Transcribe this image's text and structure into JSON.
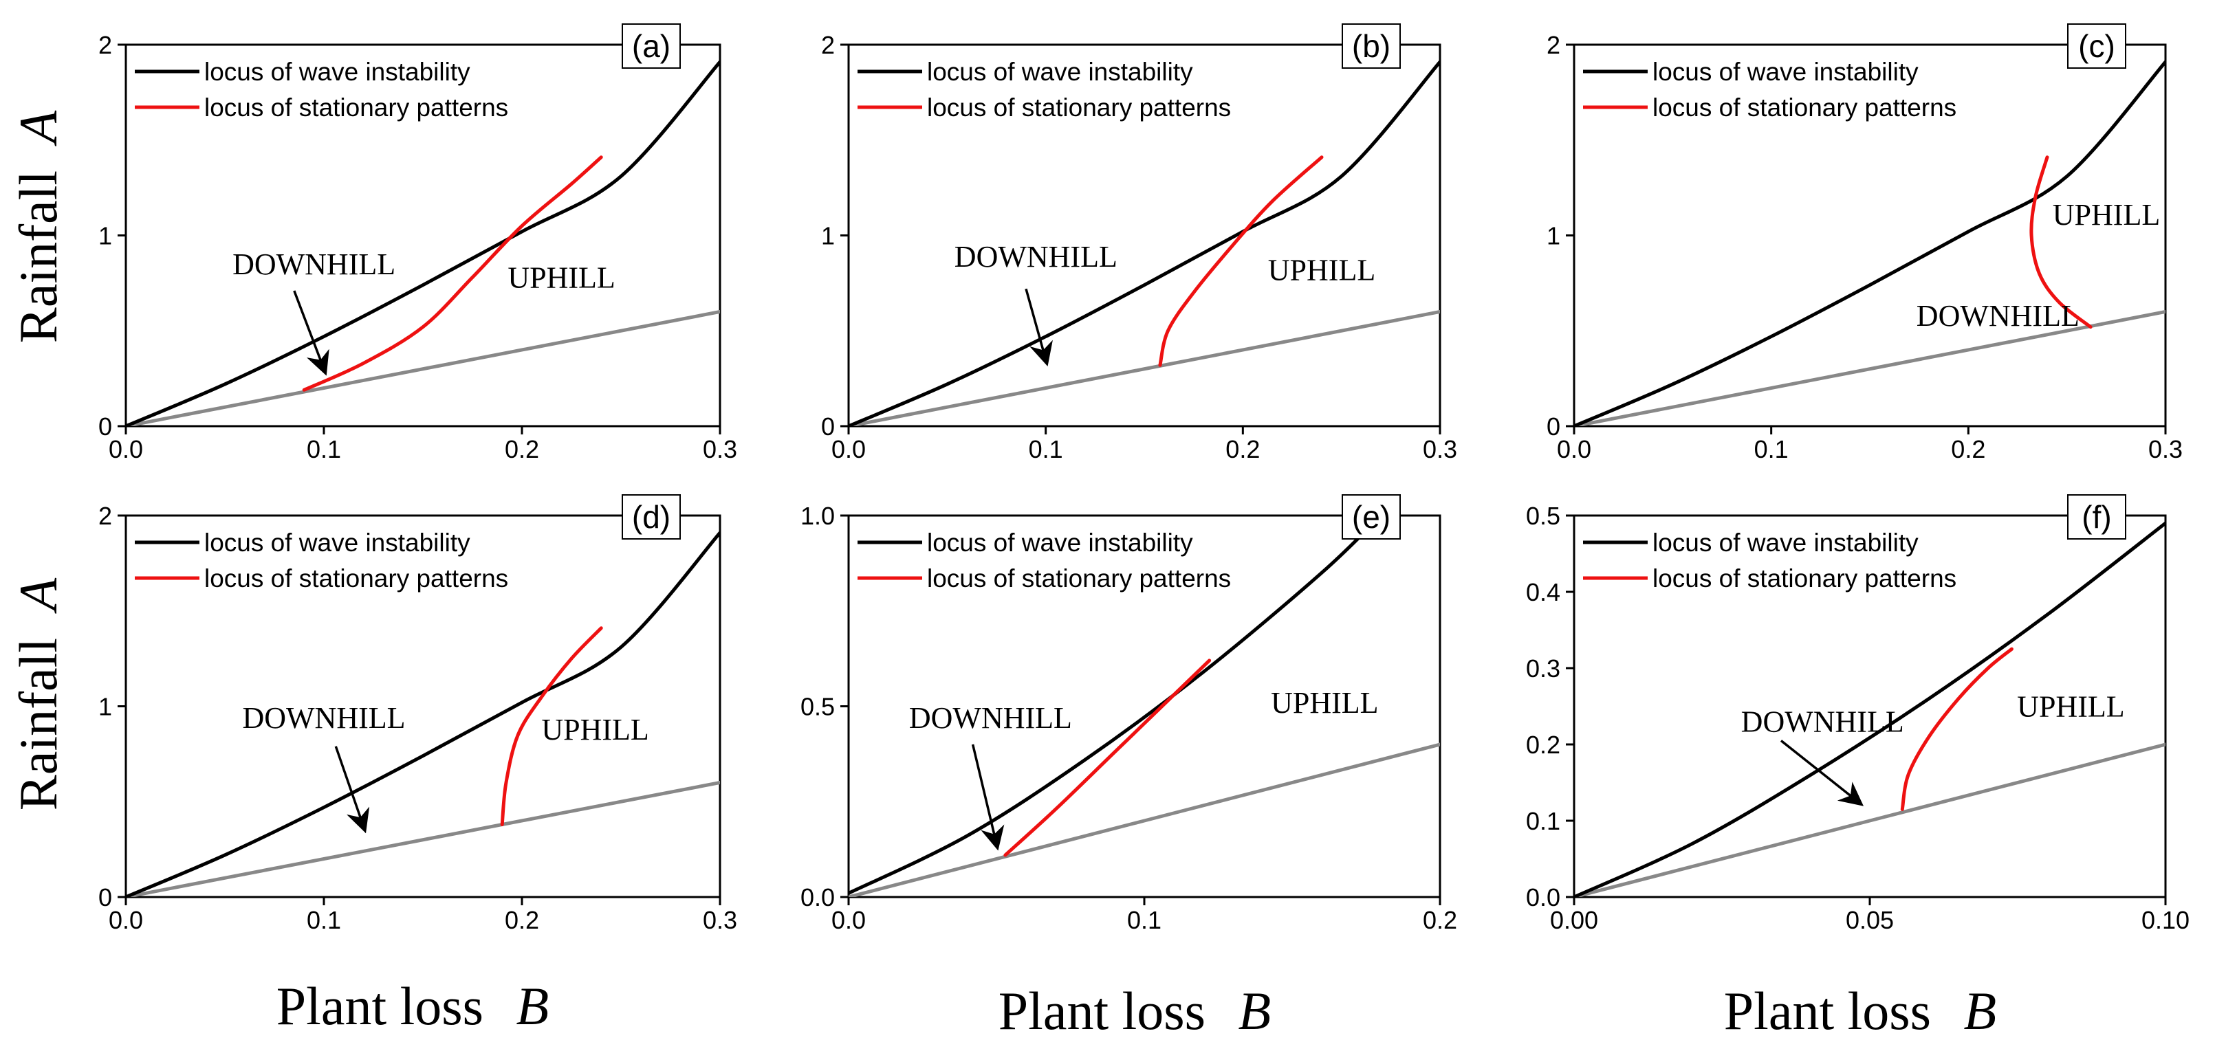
{
  "figure": {
    "ylabel_text": "Rainfall",
    "ylabel_var": "A",
    "xlabel_text": "Plant loss",
    "xlabel_var": "B"
  },
  "colors": {
    "wave_instability": "#000000",
    "stationary_patterns": "#ee1111",
    "boundary": "#888888"
  },
  "chart_data": [
    {
      "type": "line",
      "panel": "(a)",
      "xlim": [
        0,
        0.3
      ],
      "ylim": [
        0,
        2
      ],
      "xticks": [
        0,
        0.1,
        0.2,
        0.3
      ],
      "xtick_labels": [
        "0.0",
        "0.1",
        "0.2",
        "0.3"
      ],
      "yticks": [
        0,
        1,
        2
      ],
      "ytick_labels": [
        "0",
        "1",
        "2"
      ],
      "legend": [
        "locus of wave instability",
        "locus of stationary patterns"
      ],
      "series": [
        {
          "name": "locus of wave instability",
          "role": "wave",
          "x": [
            0,
            0.05,
            0.1,
            0.15,
            0.2,
            0.25,
            0.3
          ],
          "y": [
            0,
            0.22,
            0.47,
            0.74,
            1.02,
            1.31,
            1.91
          ]
        },
        {
          "name": "locus of stationary patterns",
          "role": "stationary",
          "x": [
            0.09,
            0.12,
            0.15,
            0.175,
            0.2,
            0.225,
            0.24
          ],
          "y": [
            0.19,
            0.33,
            0.52,
            0.78,
            1.05,
            1.27,
            1.41
          ]
        },
        {
          "name": "boundary",
          "role": "boundary",
          "x": [
            0,
            0.3
          ],
          "y": [
            0,
            0.6
          ]
        }
      ],
      "labels": [
        {
          "text": "DOWNHILL",
          "x": 0.095,
          "y": 0.85
        },
        {
          "text": "UPHILL",
          "x": 0.22,
          "y": 0.78
        }
      ],
      "arrow": {
        "from": [
          0.085,
          0.71
        ],
        "to": [
          0.1,
          0.3
        ]
      }
    },
    {
      "type": "line",
      "panel": "(b)",
      "xlim": [
        0,
        0.3
      ],
      "ylim": [
        0,
        2
      ],
      "xticks": [
        0,
        0.1,
        0.2,
        0.3
      ],
      "xtick_labels": [
        "0.0",
        "0.1",
        "0.2",
        "0.3"
      ],
      "yticks": [
        0,
        1,
        2
      ],
      "ytick_labels": [
        "0",
        "1",
        "2"
      ],
      "legend": [
        "locus of wave instability",
        "locus of stationary patterns"
      ],
      "series": [
        {
          "name": "locus of wave instability",
          "role": "wave",
          "x": [
            0,
            0.05,
            0.1,
            0.15,
            0.2,
            0.25,
            0.3
          ],
          "y": [
            0,
            0.22,
            0.47,
            0.74,
            1.02,
            1.31,
            1.91
          ]
        },
        {
          "name": "locus of stationary patterns",
          "role": "stationary",
          "x": [
            0.158,
            0.162,
            0.175,
            0.195,
            0.215,
            0.24
          ],
          "y": [
            0.32,
            0.5,
            0.7,
            0.95,
            1.18,
            1.41
          ]
        },
        {
          "name": "boundary",
          "role": "boundary",
          "x": [
            0,
            0.3
          ],
          "y": [
            0,
            0.6
          ]
        }
      ],
      "labels": [
        {
          "text": "DOWNHILL",
          "x": 0.095,
          "y": 0.89
        },
        {
          "text": "UPHILL",
          "x": 0.24,
          "y": 0.82
        }
      ],
      "arrow": {
        "from": [
          0.09,
          0.72
        ],
        "to": [
          0.1,
          0.35
        ]
      }
    },
    {
      "type": "line",
      "panel": "(c)",
      "xlim": [
        0,
        0.3
      ],
      "ylim": [
        0,
        2
      ],
      "xticks": [
        0,
        0.1,
        0.2,
        0.3
      ],
      "xtick_labels": [
        "0.0",
        "0.1",
        "0.2",
        "0.3"
      ],
      "yticks": [
        0,
        1,
        2
      ],
      "ytick_labels": [
        "0",
        "1",
        "2"
      ],
      "legend": [
        "locus of wave instability",
        "locus of stationary patterns"
      ],
      "series": [
        {
          "name": "locus of wave instability",
          "role": "wave",
          "x": [
            0,
            0.05,
            0.1,
            0.15,
            0.2,
            0.25,
            0.3
          ],
          "y": [
            0,
            0.22,
            0.47,
            0.74,
            1.02,
            1.31,
            1.91
          ]
        },
        {
          "name": "locus of stationary patterns",
          "role": "stationary",
          "x": [
            0.24,
            0.234,
            0.232,
            0.236,
            0.246,
            0.262
          ],
          "y": [
            1.41,
            1.2,
            1.0,
            0.8,
            0.65,
            0.52
          ]
        },
        {
          "name": "boundary",
          "role": "boundary",
          "x": [
            0,
            0.3
          ],
          "y": [
            0,
            0.6
          ]
        }
      ],
      "labels": [
        {
          "text": "UPHILL",
          "x": 0.27,
          "y": 1.11
        },
        {
          "text": "DOWNHILL",
          "x": 0.215,
          "y": 0.58
        }
      ]
    },
    {
      "type": "line",
      "panel": "(d)",
      "xlim": [
        0,
        0.3
      ],
      "ylim": [
        0,
        2
      ],
      "xticks": [
        0,
        0.1,
        0.2,
        0.3
      ],
      "xtick_labels": [
        "0.0",
        "0.1",
        "0.2",
        "0.3"
      ],
      "yticks": [
        0,
        1,
        2
      ],
      "ytick_labels": [
        "0",
        "1",
        "2"
      ],
      "legend": [
        "locus of wave instability",
        "locus of stationary patterns"
      ],
      "series": [
        {
          "name": "locus of wave instability",
          "role": "wave",
          "x": [
            0,
            0.05,
            0.1,
            0.15,
            0.2,
            0.25,
            0.3
          ],
          "y": [
            0,
            0.22,
            0.47,
            0.74,
            1.02,
            1.31,
            1.91
          ]
        },
        {
          "name": "locus of stationary patterns",
          "role": "stationary",
          "x": [
            0.19,
            0.192,
            0.198,
            0.21,
            0.225,
            0.24
          ],
          "y": [
            0.38,
            0.6,
            0.85,
            1.05,
            1.25,
            1.41
          ]
        },
        {
          "name": "boundary",
          "role": "boundary",
          "x": [
            0,
            0.3
          ],
          "y": [
            0,
            0.6
          ]
        }
      ],
      "labels": [
        {
          "text": "DOWNHILL",
          "x": 0.1,
          "y": 0.94
        },
        {
          "text": "UPHILL",
          "x": 0.237,
          "y": 0.88
        }
      ],
      "arrow": {
        "from": [
          0.106,
          0.79
        ],
        "to": [
          0.12,
          0.37
        ]
      }
    },
    {
      "type": "line",
      "panel": "(e)",
      "xlim": [
        0,
        0.2
      ],
      "ylim": [
        0,
        1.0
      ],
      "xticks": [
        0,
        0.1,
        0.2
      ],
      "xtick_labels": [
        "0.0",
        "0.1",
        "0.2"
      ],
      "yticks": [
        0,
        0.5,
        1.0
      ],
      "ytick_labels": [
        "0.0",
        "0.5",
        "1.0"
      ],
      "legend": [
        "locus of wave instability",
        "locus of stationary patterns"
      ],
      "series": [
        {
          "name": "locus of wave instability",
          "role": "wave",
          "x": [
            0,
            0.04,
            0.08,
            0.12,
            0.16,
            0.18
          ],
          "y": [
            0.01,
            0.16,
            0.36,
            0.59,
            0.85,
            1.0
          ]
        },
        {
          "name": "locus of stationary patterns",
          "role": "stationary",
          "x": [
            0.053,
            0.07,
            0.09,
            0.11,
            0.122
          ],
          "y": [
            0.11,
            0.23,
            0.38,
            0.53,
            0.62
          ]
        },
        {
          "name": "boundary",
          "role": "boundary",
          "x": [
            0,
            0.2
          ],
          "y": [
            0,
            0.4
          ]
        }
      ],
      "labels": [
        {
          "text": "DOWNHILL",
          "x": 0.048,
          "y": 0.47
        },
        {
          "text": "UPHILL",
          "x": 0.161,
          "y": 0.51
        }
      ],
      "arrow": {
        "from": [
          0.042,
          0.4
        ],
        "to": [
          0.05,
          0.14
        ]
      }
    },
    {
      "type": "line",
      "panel": "(f)",
      "xlim": [
        0,
        0.1
      ],
      "ylim": [
        0,
        0.5
      ],
      "xticks": [
        0,
        0.05,
        0.1
      ],
      "xtick_labels": [
        "0.00",
        "0.05",
        "0.10"
      ],
      "yticks": [
        0,
        0.1,
        0.2,
        0.3,
        0.4,
        0.5
      ],
      "ytick_labels": [
        "0.0",
        "0.1",
        "0.2",
        "0.3",
        "0.4",
        "0.5"
      ],
      "legend": [
        "locus of wave instability",
        "locus of stationary patterns"
      ],
      "series": [
        {
          "name": "locus of wave instability",
          "role": "wave",
          "x": [
            0,
            0.02,
            0.04,
            0.06,
            0.08,
            0.1
          ],
          "y": [
            0,
            0.07,
            0.16,
            0.26,
            0.37,
            0.49
          ]
        },
        {
          "name": "locus of stationary patterns",
          "role": "stationary",
          "x": [
            0.0555,
            0.0565,
            0.06,
            0.065,
            0.07,
            0.074
          ],
          "y": [
            0.115,
            0.16,
            0.21,
            0.26,
            0.3,
            0.325
          ]
        },
        {
          "name": "boundary",
          "role": "boundary",
          "x": [
            0,
            0.1
          ],
          "y": [
            0,
            0.2
          ]
        }
      ],
      "labels": [
        {
          "text": "DOWNHILL",
          "x": 0.042,
          "y": 0.23
        },
        {
          "text": "UPHILL",
          "x": 0.084,
          "y": 0.25
        }
      ],
      "arrow": {
        "from": [
          0.035,
          0.205
        ],
        "to": [
          0.048,
          0.125
        ]
      }
    }
  ]
}
